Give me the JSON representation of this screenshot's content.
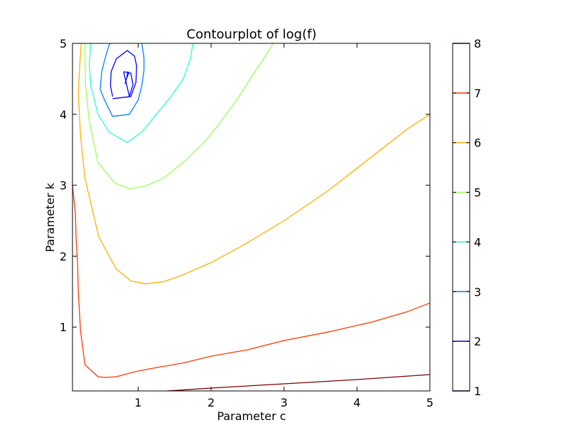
{
  "chart_data": {
    "type": "contour",
    "title": "Contourplot of log(f)",
    "xlabel": "Parameter c",
    "ylabel": "Parameter k",
    "xlim": [
      0.1,
      5
    ],
    "ylim": [
      0.1,
      5
    ],
    "x_ticks": [
      1,
      2,
      3,
      4,
      5
    ],
    "y_ticks": [
      1,
      2,
      3,
      4,
      5
    ],
    "x_tick_labels": [
      "1",
      "2",
      "3",
      "4",
      "5"
    ],
    "y_tick_labels": [
      "1",
      "2",
      "3",
      "4",
      "5"
    ],
    "grid": false,
    "levels": [
      {
        "level": 1,
        "color": "#00007f",
        "contours": []
      },
      {
        "level": 2,
        "color": "#0000ff",
        "contours": [
          [
            [
              0.82,
              4.43
            ],
            [
              0.84,
              4.5
            ],
            [
              0.86,
              4.6
            ],
            [
              0.87,
              4.58
            ],
            [
              0.84,
              4.5
            ],
            [
              0.82,
              4.43
            ]
          ],
          [
            [
              0.8,
              4.6
            ],
            [
              0.9,
              4.58
            ],
            [
              0.93,
              4.42
            ],
            [
              0.88,
              4.25
            ],
            [
              0.8,
              4.6
            ]
          ]
        ]
      },
      {
        "level": 2,
        "color": "#0000ff",
        "contours": [
          [
            [
              0.65,
              4.25
            ],
            [
              0.62,
              4.4
            ],
            [
              0.63,
              4.6
            ],
            [
              0.7,
              4.78
            ],
            [
              0.85,
              4.9
            ],
            [
              0.95,
              4.82
            ],
            [
              0.98,
              4.68
            ],
            [
              0.97,
              4.45
            ],
            [
              0.9,
              4.25
            ],
            [
              0.65,
              4.22
            ]
          ]
        ]
      },
      {
        "level": 3,
        "color": "#0080ff",
        "contours": [
          [
            [
              0.65,
              3.97
            ],
            [
              0.54,
              4.2
            ],
            [
              0.48,
              4.35
            ],
            [
              0.5,
              4.6
            ],
            [
              0.55,
              4.8
            ],
            [
              0.6,
              4.97
            ],
            [
              0.62,
              5.0
            ]
          ],
          [
            [
              1.05,
              5.0
            ],
            [
              1.08,
              4.8
            ],
            [
              1.08,
              4.62
            ],
            [
              1.05,
              4.4
            ],
            [
              1.0,
              4.2
            ],
            [
              0.88,
              4.0
            ],
            [
              0.65,
              3.97
            ]
          ]
        ]
      },
      {
        "level": 4,
        "color": "#2affd0",
        "contours": [
          [
            [
              0.35,
              5.0
            ],
            [
              0.33,
              4.7
            ],
            [
              0.35,
              4.4
            ],
            [
              0.45,
              4.0
            ],
            [
              0.6,
              3.75
            ],
            [
              0.85,
              3.6
            ],
            [
              1.05,
              3.75
            ],
            [
              1.25,
              4.0
            ],
            [
              1.45,
              4.25
            ],
            [
              1.62,
              4.5
            ],
            [
              1.72,
              4.8
            ],
            [
              1.75,
              5.0
            ]
          ]
        ]
      },
      {
        "level": 5,
        "color": "#9cff5a",
        "contours": [
          [
            [
              0.27,
              5.0
            ],
            [
              0.27,
              4.75
            ],
            [
              0.28,
              4.4
            ],
            [
              0.33,
              3.9
            ],
            [
              0.45,
              3.32
            ],
            [
              0.68,
              3.03
            ],
            [
              0.88,
              2.95
            ],
            [
              1.1,
              2.99
            ],
            [
              1.35,
              3.1
            ],
            [
              1.65,
              3.35
            ],
            [
              1.9,
              3.6
            ],
            [
              2.1,
              3.85
            ],
            [
              2.35,
              4.2
            ],
            [
              2.6,
              4.6
            ],
            [
              2.7,
              4.75
            ],
            [
              2.85,
              5.0
            ]
          ]
        ]
      },
      {
        "level": 6,
        "color": "#ffb000",
        "contours": [
          [
            [
              0.22,
              5.0
            ],
            [
              0.2,
              4.7
            ],
            [
              0.18,
              4.3
            ],
            [
              0.21,
              3.7
            ],
            [
              0.27,
              3.1
            ],
            [
              0.46,
              2.27
            ],
            [
              0.7,
              1.82
            ],
            [
              0.9,
              1.65
            ],
            [
              1.1,
              1.61
            ],
            [
              1.35,
              1.64
            ],
            [
              1.6,
              1.73
            ],
            [
              2.0,
              1.91
            ],
            [
              2.45,
              2.16
            ],
            [
              3.0,
              2.5
            ],
            [
              3.6,
              2.92
            ],
            [
              4.2,
              3.4
            ],
            [
              4.7,
              3.8
            ],
            [
              5.0,
              4.0
            ]
          ]
        ]
      },
      {
        "level": 7,
        "color": "#ff3800",
        "contours": [
          [
            [
              0.1,
              3.0
            ],
            [
              0.14,
              2.6
            ],
            [
              0.15,
              2.25
            ],
            [
              0.17,
              1.9
            ],
            [
              0.18,
              1.5
            ],
            [
              0.21,
              0.95
            ],
            [
              0.27,
              0.47
            ],
            [
              0.45,
              0.3
            ],
            [
              0.55,
              0.29
            ],
            [
              0.7,
              0.3
            ],
            [
              0.95,
              0.37
            ],
            [
              1.25,
              0.43
            ],
            [
              1.6,
              0.49
            ],
            [
              2.0,
              0.59
            ],
            [
              2.5,
              0.68
            ],
            [
              3.0,
              0.81
            ],
            [
              3.6,
              0.93
            ],
            [
              4.2,
              1.07
            ],
            [
              4.7,
              1.22
            ],
            [
              5.0,
              1.34
            ]
          ]
        ]
      },
      {
        "level": 8,
        "color": "#7f0000",
        "contours": [
          [
            [
              1.4,
              0.1
            ],
            [
              2.0,
              0.14
            ],
            [
              3.0,
              0.2
            ],
            [
              4.0,
              0.26
            ],
            [
              5.0,
              0.33
            ]
          ]
        ]
      }
    ],
    "colorbar": {
      "ticks": [
        1,
        2,
        3,
        4,
        5,
        6,
        7,
        8
      ],
      "tick_labels": [
        "1",
        "2",
        "3",
        "4",
        "5",
        "6",
        "7",
        "8"
      ],
      "colors": [
        "#00007f",
        "#0000ff",
        "#0080ff",
        "#2affd0",
        "#9cff5a",
        "#ffb000",
        "#ff3800",
        "#7f0000"
      ]
    }
  }
}
